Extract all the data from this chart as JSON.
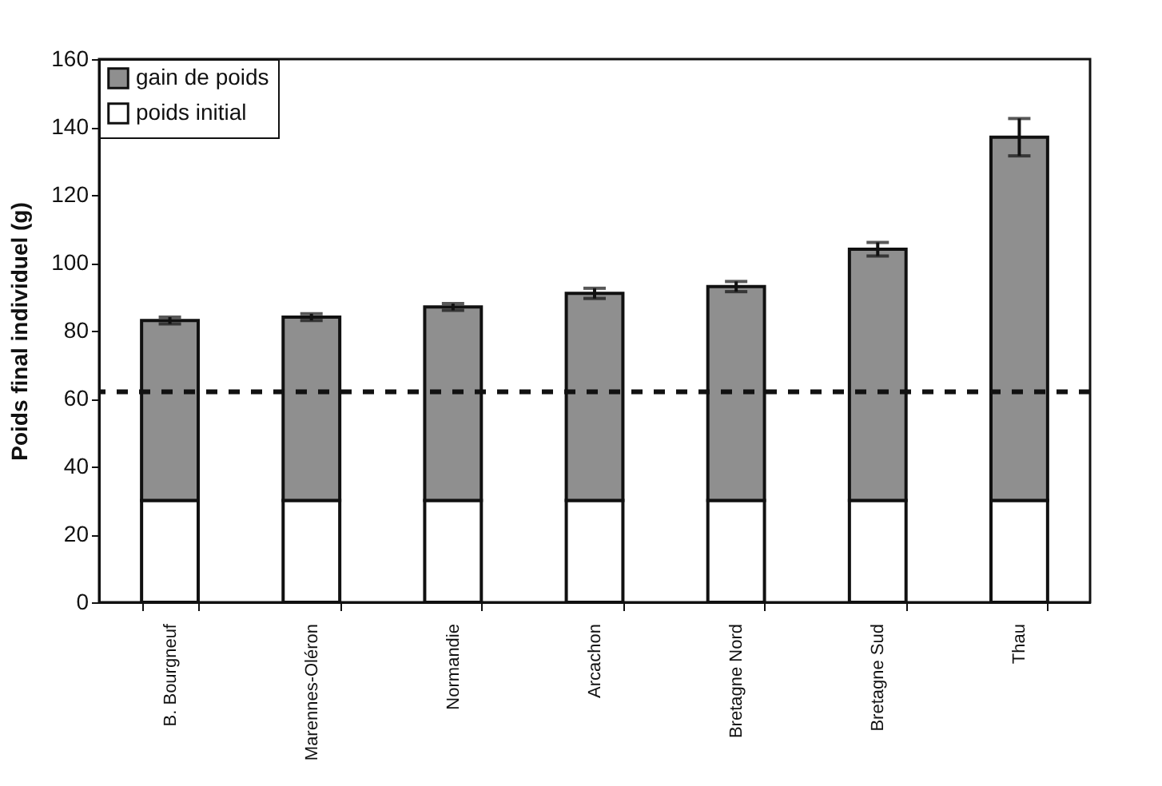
{
  "chart_data": {
    "type": "bar",
    "ylabel": "Poids final individuel (g)",
    "categories": [
      "B. Bourgneuf",
      "Marennes-Oléron",
      "Normandie",
      "Arcachon",
      "Bretagne Nord",
      "Bretagne Sud",
      "Thau"
    ],
    "stacked": true,
    "series": [
      {
        "name": "poids initial",
        "color": "#ffffff",
        "values": [
          30,
          30,
          30,
          30,
          30,
          30,
          30
        ]
      },
      {
        "name": "gain de poids",
        "color": "#8f8f8f",
        "values": [
          53,
          54,
          57,
          61,
          63,
          74,
          107
        ],
        "errors": [
          1,
          1,
          1,
          1.5,
          1.5,
          2,
          5.5
        ]
      }
    ],
    "ylim": [
      0,
      160
    ],
    "yticks": [
      0,
      20,
      40,
      60,
      80,
      100,
      120,
      140,
      160
    ],
    "ref_lines": [
      {
        "axis": "y",
        "value": 62,
        "color": "#111111",
        "line_style": "dashed"
      }
    ],
    "grid": false,
    "legend": "top left"
  }
}
